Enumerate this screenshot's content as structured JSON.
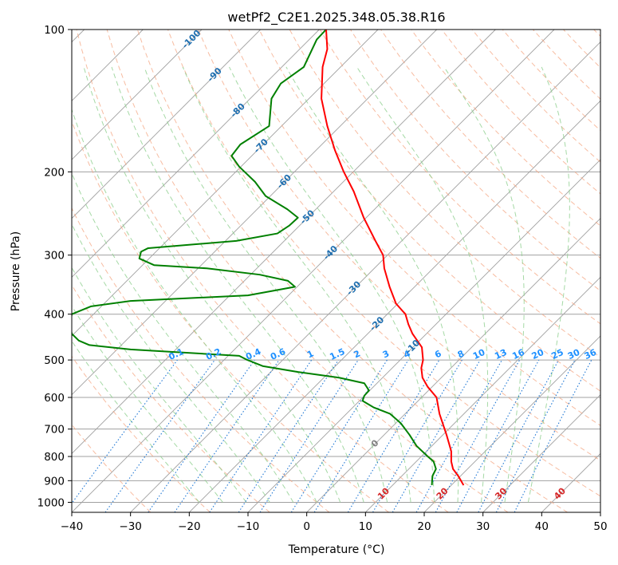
{
  "chart_data": {
    "type": "skew-t",
    "title": "wetPf2_C2E1.2025.348.05.38.R16",
    "xlabel": "Temperature (°C)",
    "ylabel": "Pressure (hPa)",
    "xlim": [
      -40,
      50
    ],
    "ylim": [
      1050,
      100
    ],
    "x_ticks": [
      -40,
      -30,
      -20,
      -10,
      0,
      10,
      20,
      30,
      40,
      50
    ],
    "x_tick_labels": [
      "−40",
      "−30",
      "−20",
      "−10",
      "0",
      "10",
      "20",
      "30",
      "40",
      "50"
    ],
    "y_ticks": [
      100,
      200,
      300,
      400,
      500,
      600,
      700,
      800,
      900,
      1000
    ],
    "y_tick_labels": [
      "100",
      "200",
      "300",
      "400",
      "500",
      "600",
      "700",
      "800",
      "900",
      "1000"
    ],
    "temperature_profile": {
      "name": "Temperature",
      "color": "#ff0000",
      "points": [
        {
          "p": 920,
          "x": 26.7
        },
        {
          "p": 880,
          "x": 25.8
        },
        {
          "p": 850,
          "x": 24.9
        },
        {
          "p": 820,
          "x": 24.6
        },
        {
          "p": 780,
          "x": 24.6
        },
        {
          "p": 720,
          "x": 23.8
        },
        {
          "p": 650,
          "x": 22.6
        },
        {
          "p": 600,
          "x": 22.1
        },
        {
          "p": 570,
          "x": 20.6
        },
        {
          "p": 545,
          "x": 19.7
        },
        {
          "p": 520,
          "x": 19.5
        },
        {
          "p": 500,
          "x": 19.8
        },
        {
          "p": 470,
          "x": 19.6
        },
        {
          "p": 440,
          "x": 18.0
        },
        {
          "p": 420,
          "x": 17.3
        },
        {
          "p": 400,
          "x": 16.8
        },
        {
          "p": 380,
          "x": 15.2
        },
        {
          "p": 350,
          "x": 14.1
        },
        {
          "p": 320,
          "x": 13.2
        },
        {
          "p": 300,
          "x": 13.0
        },
        {
          "p": 280,
          "x": 11.7
        },
        {
          "p": 250,
          "x": 9.7
        },
        {
          "p": 220,
          "x": 8.0
        },
        {
          "p": 200,
          "x": 6.3
        },
        {
          "p": 180,
          "x": 4.8
        },
        {
          "p": 160,
          "x": 3.5
        },
        {
          "p": 140,
          "x": 2.5
        },
        {
          "p": 120,
          "x": 2.7
        },
        {
          "p": 110,
          "x": 3.5
        },
        {
          "p": 100,
          "x": 3.3
        }
      ]
    },
    "dewpoint_profile": {
      "name": "Dewpoint",
      "color": "#008000",
      "points": [
        {
          "p": 920,
          "x": 21.3
        },
        {
          "p": 880,
          "x": 21.4
        },
        {
          "p": 850,
          "x": 22.0
        },
        {
          "p": 820,
          "x": 21.6
        },
        {
          "p": 800,
          "x": 20.6
        },
        {
          "p": 760,
          "x": 18.7
        },
        {
          "p": 720,
          "x": 17.5
        },
        {
          "p": 680,
          "x": 16.0
        },
        {
          "p": 650,
          "x": 14.2
        },
        {
          "p": 630,
          "x": 11.4
        },
        {
          "p": 610,
          "x": 9.5
        },
        {
          "p": 595,
          "x": 9.8
        },
        {
          "p": 580,
          "x": 10.6
        },
        {
          "p": 560,
          "x": 9.8
        },
        {
          "p": 545,
          "x": 5.5
        },
        {
          "p": 530,
          "x": -1.5
        },
        {
          "p": 515,
          "x": -7.5
        },
        {
          "p": 500,
          "x": -10.1
        },
        {
          "p": 490,
          "x": -11.5
        },
        {
          "p": 475,
          "x": -30.0
        },
        {
          "p": 465,
          "x": -37.0
        },
        {
          "p": 455,
          "x": -38.8
        },
        {
          "p": 440,
          "x": -40.0
        },
        {
          "p": 420,
          "x": -40.3
        },
        {
          "p": 400,
          "x": -40.0
        },
        {
          "p": 385,
          "x": -36.7
        },
        {
          "p": 375,
          "x": -30.0
        },
        {
          "p": 365,
          "x": -10.0
        },
        {
          "p": 350,
          "x": -2.0
        },
        {
          "p": 340,
          "x": -3.2
        },
        {
          "p": 330,
          "x": -8.0
        },
        {
          "p": 320,
          "x": -17.0
        },
        {
          "p": 315,
          "x": -26.0
        },
        {
          "p": 305,
          "x": -28.5
        },
        {
          "p": 295,
          "x": -28.2
        },
        {
          "p": 290,
          "x": -27.0
        },
        {
          "p": 280,
          "x": -12.0
        },
        {
          "p": 270,
          "x": -5.0
        },
        {
          "p": 260,
          "x": -3.0
        },
        {
          "p": 250,
          "x": -1.5
        },
        {
          "p": 240,
          "x": -3.3
        },
        {
          "p": 225,
          "x": -7.0
        },
        {
          "p": 210,
          "x": -8.8
        },
        {
          "p": 195,
          "x": -11.5
        },
        {
          "p": 185,
          "x": -12.8
        },
        {
          "p": 175,
          "x": -11.3
        },
        {
          "p": 160,
          "x": -6.4
        },
        {
          "p": 140,
          "x": -6.0
        },
        {
          "p": 130,
          "x": -4.4
        },
        {
          "p": 120,
          "x": -0.5
        },
        {
          "p": 105,
          "x": 1.7
        },
        {
          "p": 100,
          "x": 3.3
        }
      ]
    },
    "isotherm_labels": [
      {
        "text": "-100",
        "t": -100
      },
      {
        "text": "-90",
        "t": -90
      },
      {
        "text": "-80",
        "t": -80
      },
      {
        "text": "-70",
        "t": -70
      },
      {
        "text": "-60",
        "t": -60
      },
      {
        "text": "-50",
        "t": -50
      },
      {
        "text": "-40",
        "t": -40
      },
      {
        "text": "-30",
        "t": -30
      },
      {
        "text": "-20",
        "t": -20
      },
      {
        "text": "-10",
        "t": -10
      },
      {
        "text": "0",
        "t": 0
      },
      {
        "text": "10",
        "t": 10
      },
      {
        "text": "20",
        "t": 20
      },
      {
        "text": "30",
        "t": 30
      },
      {
        "text": "40",
        "t": 40
      }
    ],
    "mixing_ratio_labels": [
      "0.1",
      "0.2",
      "0.4",
      "0.6",
      "1",
      "1.5",
      "2",
      "3",
      "4",
      "6",
      "8",
      "10",
      "13",
      "16",
      "20",
      "25",
      "30",
      "36"
    ],
    "mixing_ratio_values": [
      0.1,
      0.2,
      0.4,
      0.6,
      1,
      1.5,
      2,
      3,
      4,
      6,
      8,
      10,
      13,
      16,
      20,
      25,
      30,
      36
    ],
    "colors": {
      "isotherm": "#a0a0a0",
      "dry_adiabat": "#f4a582",
      "moist_adiabat": "#8fcf8f",
      "mixing_ratio": "#1f77d4",
      "label_cold": "#1f6fb0",
      "label_warm": "#d62728",
      "label_zero": "#808080",
      "mixing_label": "#1e90ff"
    }
  }
}
